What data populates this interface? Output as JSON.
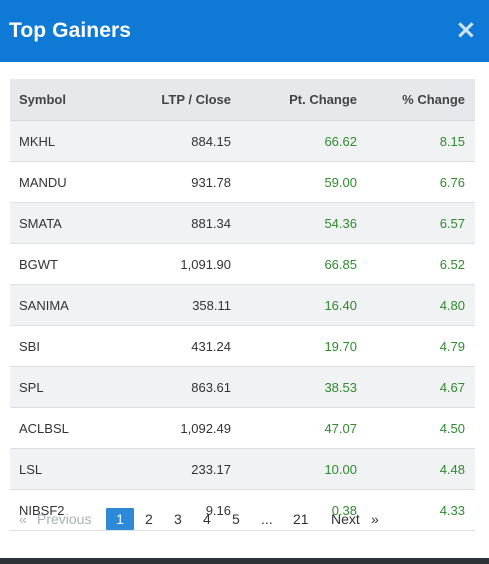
{
  "modal": {
    "title": "Top Gainers",
    "close_glyph": "×"
  },
  "table": {
    "headers": {
      "symbol": "Symbol",
      "ltp": "LTP / Close",
      "pt_change": "Pt. Change",
      "pct_change": "% Change"
    },
    "rows": [
      {
        "symbol": "MKHL",
        "ltp": "884.15",
        "pt": "66.62",
        "pct": "8.15"
      },
      {
        "symbol": "MANDU",
        "ltp": "931.78",
        "pt": "59.00",
        "pct": "6.76"
      },
      {
        "symbol": "SMATA",
        "ltp": "881.34",
        "pt": "54.36",
        "pct": "6.57"
      },
      {
        "symbol": "BGWT",
        "ltp": "1,091.90",
        "pt": "66.85",
        "pct": "6.52"
      },
      {
        "symbol": "SANIMA",
        "ltp": "358.11",
        "pt": "16.40",
        "pct": "4.80"
      },
      {
        "symbol": "SBI",
        "ltp": "431.24",
        "pt": "19.70",
        "pct": "4.79"
      },
      {
        "symbol": "SPL",
        "ltp": "863.61",
        "pt": "38.53",
        "pct": "4.67"
      },
      {
        "symbol": "ACLBSL",
        "ltp": "1,092.49",
        "pt": "47.07",
        "pct": "4.50"
      },
      {
        "symbol": "LSL",
        "ltp": "233.17",
        "pt": "10.00",
        "pct": "4.48"
      },
      {
        "symbol": "NIBSF2",
        "ltp": "9.16",
        "pt": "0.38",
        "pct": "4.33"
      }
    ]
  },
  "pagination": {
    "prev_arrow": "«",
    "prev_label": "Previous",
    "pages": [
      "1",
      "2",
      "3",
      "4",
      "5"
    ],
    "ellipsis": "...",
    "last_page": "21",
    "next_label": "Next",
    "next_arrow": "»",
    "current_page": "1"
  },
  "colors": {
    "header_blue": "#0f7ad6",
    "positive_green": "#2e8b2e",
    "active_page": "#2d8ad8"
  }
}
